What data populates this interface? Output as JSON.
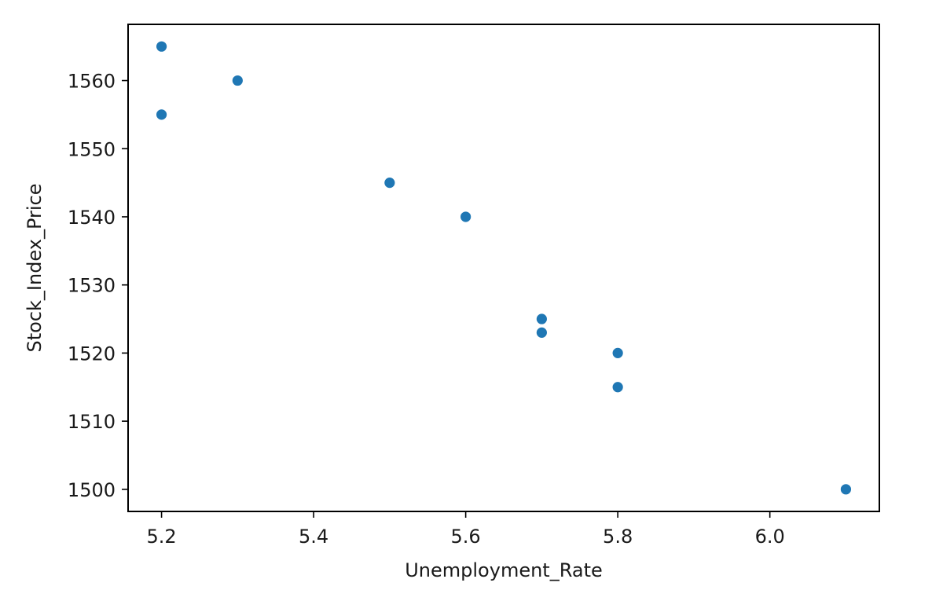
{
  "chart_data": {
    "type": "scatter",
    "title": "",
    "xlabel": "Unemployment_Rate",
    "ylabel": "Stock_Index_Price",
    "xlim": [
      5.156,
      6.144
    ],
    "ylim": [
      1496.75,
      1568.25
    ],
    "xticks": [
      5.2,
      5.4,
      5.6,
      5.8,
      6.0
    ],
    "xtick_labels": [
      "5.2",
      "5.4",
      "5.6",
      "5.8",
      "6.0"
    ],
    "yticks": [
      1500,
      1510,
      1520,
      1530,
      1540,
      1550,
      1560
    ],
    "ytick_labels": [
      "1500",
      "1510",
      "1520",
      "1530",
      "1540",
      "1550",
      "1560"
    ],
    "grid": false,
    "marker_color": "#1f77b4",
    "points": [
      {
        "x": 5.2,
        "y": 1565
      },
      {
        "x": 5.2,
        "y": 1555
      },
      {
        "x": 5.3,
        "y": 1560
      },
      {
        "x": 5.5,
        "y": 1545
      },
      {
        "x": 5.6,
        "y": 1540
      },
      {
        "x": 5.7,
        "y": 1525
      },
      {
        "x": 5.7,
        "y": 1523
      },
      {
        "x": 5.8,
        "y": 1520
      },
      {
        "x": 5.8,
        "y": 1515
      },
      {
        "x": 6.1,
        "y": 1500
      }
    ]
  }
}
